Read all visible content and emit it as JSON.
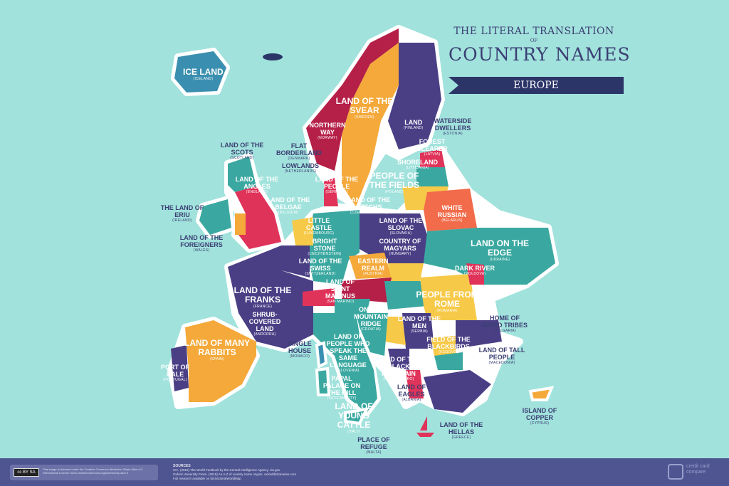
{
  "title": {
    "line1": "THE LITERAL TRANSLATION",
    "line2": "OF",
    "line3": "COUNTRY NAMES",
    "banner": "EUROPE"
  },
  "colors": {
    "sea": "#a1e2dc",
    "navy": "#3b3f73",
    "teal": "#3aa8a0",
    "orange": "#f4a93a",
    "red": "#e0335a",
    "crimson": "#b52048",
    "coral": "#f26b4a",
    "yellow": "#f7c948",
    "purple": "#4a3f85"
  },
  "labels": [
    {
      "name": "ICE LAND",
      "sub": "(ICELAND)"
    },
    {
      "name": "LAND",
      "sub": "(FINLAND)"
    },
    {
      "name": "NORTHERN WAY",
      "sub": "(NORWAY)"
    },
    {
      "name": "LAND OF THE SVEAR",
      "sub": "(SWEDEN)"
    },
    {
      "name": "LAND OF THE SCOTS",
      "sub": "(SCOTLAND)"
    },
    {
      "name": "WATERSIDE DWELLERS",
      "sub": "(ESTONIA)"
    },
    {
      "name": "FOREST CLEARER",
      "sub": "(LATVIA)"
    },
    {
      "name": "SHORELAND",
      "sub": "(LITHUANIA)"
    },
    {
      "name": "FLAT BORDERLAND",
      "sub": "(DENMARK)"
    },
    {
      "name": "WHITE RUSSIAN",
      "sub": "(BELARUS)"
    },
    {
      "name": "THE LAND OF ERIU",
      "sub": "(IRELAND)"
    },
    {
      "name": "LAND OF THE ANGLES",
      "sub": "(ENGLAND)"
    },
    {
      "name": "LOWLANDS",
      "sub": "(NETHERLANDS)"
    },
    {
      "name": "LAND OF THE PEOPLE",
      "sub": "(GERMANY)"
    },
    {
      "name": "PEOPLE OF THE FIELDS",
      "sub": "(POLAND)"
    },
    {
      "name": "LAND ON THE EDGE",
      "sub": "(UKRAINE)"
    },
    {
      "name": "LAND OF THE FOREIGNERS",
      "sub": "(WALES)"
    },
    {
      "name": "LAND OF THE BELGAE",
      "sub": "(BELGIUM)"
    },
    {
      "name": "LITTLE CASTLE",
      "sub": "(LUXEMBOURG)"
    },
    {
      "name": "LAND OF THE CZECHS",
      "sub": "(CZECH REPUBLIC)"
    },
    {
      "name": "LAND OF THE SLOVAC",
      "sub": "(SLOVAKIA)"
    },
    {
      "name": "DARK RIVER",
      "sub": "(MOLDOVA)"
    },
    {
      "name": "BRIGHT STONE",
      "sub": "(LIECHTENSTEIN)"
    },
    {
      "name": "EASTERN REALM",
      "sub": "(AUSTRIA)"
    },
    {
      "name": "COUNTRY OF MAGYARS",
      "sub": "(HUNGARY)"
    },
    {
      "name": "PEOPLE FROM ROME",
      "sub": "(ROMANIA)"
    },
    {
      "name": "LAND OF THE FRANKS",
      "sub": "(FRANCE)"
    },
    {
      "name": "LAND OF THE SWISS",
      "sub": "(SWITZERLAND)"
    },
    {
      "name": "LAND OF PEOPLE WHO SPEAK THE SAME LANGUAGE",
      "sub": "(SLOVENIA)"
    },
    {
      "name": "HOME OF MIXED TRIBES",
      "sub": "(BULGARIA)"
    },
    {
      "name": "LAND OF SAINT MARINUS",
      "sub": "(SAN MARINO)"
    },
    {
      "name": "LAND OF THE MEN",
      "sub": "(SERBIA)"
    },
    {
      "name": "ON THE MOUNTAIN RIDGE",
      "sub": "(CROATIA)"
    },
    {
      "name": "FIELD OF THE BLACKBIRDS",
      "sub": "(KOSOVO)"
    },
    {
      "name": "SHRUB-COVERED LAND",
      "sub": "(ANDORRA)"
    },
    {
      "name": "SINGLE HOUSE",
      "sub": "(MONACO)"
    },
    {
      "name": "PAPAL PALACE ON THE HILL",
      "sub": "(VATICAN CITY)"
    },
    {
      "name": "LAND OF THE BLACK MOUNTAIN",
      "sub": "(MONTENEGRO)"
    },
    {
      "name": "LAND OF TALL PEOPLE",
      "sub": "(MACEDONIA)"
    },
    {
      "name": "LAND OF MANY RABBITS",
      "sub": "(SPAIN)"
    },
    {
      "name": "PORT OF CALE",
      "sub": "(PORTUGAL)"
    },
    {
      "name": "LAND OF YOUNG CATTLE",
      "sub": "(ITALY)"
    },
    {
      "name": "LAND OF EAGLES",
      "sub": "(ALBANIA)"
    },
    {
      "name": "ISLAND OF COPPER",
      "sub": "(CYPRUS)"
    },
    {
      "name": "PLACE OF REFUGE",
      "sub": "(MALTA)"
    },
    {
      "name": "LAND OF THE HELLAS",
      "sub": "(GREECE)"
    }
  ],
  "footer": {
    "license": "This image is licensed under the Creative Commons Attribution-Share Alike 4.0 International License: www.creativecommons.org/licenses/by-sa/4.0",
    "cc_badge": "cc BY SA",
    "sources_title": "SOURCES",
    "source1": "CIA. (2016) The World Factbook by the Central Intelligence Agency. cia.gov",
    "source2": "Oxford University Press. (2016) An A-Z of country name origins. oxforddictionaries.com",
    "source3": "Full research available on bit.ly/LiteralWorldMap",
    "logo": "credit card compare"
  }
}
